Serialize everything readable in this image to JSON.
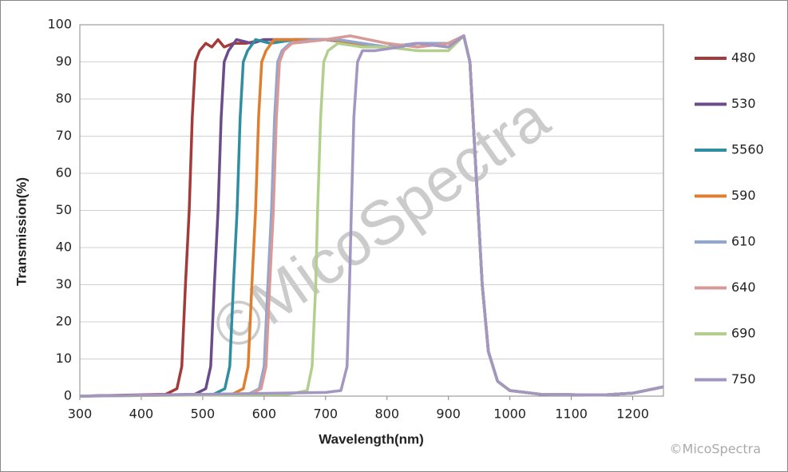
{
  "chart_data": {
    "type": "line",
    "xlabel": "Wavelength(nm)",
    "ylabel": "Transmission(%)",
    "watermark": "©MicoSpectra",
    "credit": "©MicoSpectra",
    "xlim": [
      300,
      1250
    ],
    "xticks": [
      300,
      400,
      500,
      600,
      700,
      800,
      900,
      1000,
      1100,
      1200
    ],
    "ylim": [
      0,
      100
    ],
    "yticks": [
      0,
      10,
      20,
      30,
      40,
      50,
      60,
      70,
      80,
      90,
      100
    ],
    "grid": true,
    "legend": "right",
    "series": [
      {
        "name": "480",
        "color": "#a33b3a",
        "x": [
          300,
          440,
          458,
          466,
          472,
          478,
          483,
          488,
          495,
          505,
          515,
          525,
          535,
          550,
          570,
          600,
          650,
          700,
          750,
          800,
          850,
          900,
          925,
          935,
          945,
          955,
          965,
          980,
          1000,
          1050,
          1150,
          1200,
          1250
        ],
        "values": [
          0,
          0.5,
          2,
          8,
          30,
          50,
          75,
          90,
          93,
          95,
          94,
          96,
          94,
          95,
          95,
          96,
          96,
          96,
          95,
          94,
          95,
          95,
          97,
          90,
          60,
          30,
          12,
          4,
          1.5,
          0.5,
          0.3,
          0.8,
          2.5
        ]
      },
      {
        "name": "530",
        "color": "#6b4c8a",
        "x": [
          300,
          487,
          505,
          513,
          519,
          525,
          530,
          535,
          542,
          555,
          580,
          600,
          650,
          700,
          750,
          800,
          850,
          900,
          925,
          935,
          945,
          955,
          965,
          980,
          1000,
          1050,
          1150,
          1200,
          1250
        ],
        "values": [
          0,
          0.5,
          2,
          8,
          30,
          50,
          75,
          90,
          93,
          96,
          95,
          96,
          96,
          96,
          95,
          94,
          95,
          95,
          97,
          90,
          60,
          30,
          12,
          4,
          1.5,
          0.5,
          0.3,
          0.8,
          2.5
        ]
      },
      {
        "name": "5560",
        "color": "#2f8fa0",
        "x": [
          300,
          518,
          536,
          544,
          550,
          556,
          561,
          566,
          573,
          586,
          610,
          650,
          700,
          750,
          800,
          850,
          900,
          925,
          935,
          945,
          955,
          965,
          980,
          1000,
          1050,
          1150,
          1200,
          1250
        ],
        "values": [
          0,
          0.5,
          2,
          8,
          30,
          50,
          75,
          90,
          93,
          96,
          95,
          96,
          96,
          95,
          94,
          95,
          94,
          97,
          90,
          60,
          30,
          12,
          4,
          1.5,
          0.5,
          0.3,
          0.8,
          2.5
        ]
      },
      {
        "name": "590",
        "color": "#e07e30",
        "x": [
          300,
          548,
          566,
          574,
          580,
          586,
          591,
          596,
          603,
          616,
          650,
          700,
          750,
          800,
          850,
          900,
          925,
          935,
          945,
          955,
          965,
          980,
          1000,
          1050,
          1150,
          1200,
          1250
        ],
        "values": [
          0,
          0.5,
          2,
          8,
          30,
          50,
          75,
          90,
          93,
          96,
          96,
          96,
          95,
          94,
          95,
          95,
          97,
          90,
          60,
          30,
          12,
          4,
          1.5,
          0.5,
          0.3,
          0.8,
          2.5
        ]
      },
      {
        "name": "610",
        "color": "#8ea6d0",
        "x": [
          300,
          574,
          592,
          600,
          606,
          612,
          617,
          622,
          629,
          642,
          680,
          720,
          800,
          850,
          900,
          925,
          935,
          945,
          955,
          965,
          980,
          1000,
          1050,
          1150,
          1200,
          1250
        ],
        "values": [
          0,
          0.5,
          2,
          8,
          30,
          50,
          75,
          90,
          93,
          95,
          96,
          96,
          94,
          95,
          95,
          97,
          90,
          60,
          30,
          12,
          4,
          1.5,
          0.5,
          0.3,
          0.8,
          2.5
        ]
      },
      {
        "name": "640",
        "color": "#d89a98",
        "x": [
          300,
          577,
          595,
          603,
          609,
          615,
          620,
          625,
          632,
          645,
          700,
          740,
          800,
          850,
          900,
          925,
          935,
          945,
          955,
          965,
          980,
          1000,
          1050,
          1150,
          1200,
          1250
        ],
        "values": [
          0,
          0.5,
          2,
          8,
          30,
          50,
          75,
          90,
          93,
          95,
          96,
          97,
          95,
          94,
          95,
          97,
          90,
          60,
          30,
          12,
          4,
          1.5,
          0.5,
          0.3,
          0.8,
          2.5
        ]
      },
      {
        "name": "690",
        "color": "#b2cf8e",
        "x": [
          300,
          640,
          670,
          678,
          684,
          687,
          692,
          697,
          704,
          720,
          760,
          800,
          850,
          900,
          925,
          935,
          945,
          955,
          965,
          980,
          1000,
          1050,
          1150,
          1200,
          1250
        ],
        "values": [
          0,
          0.5,
          1.5,
          8,
          30,
          50,
          75,
          90,
          93,
          95,
          94,
          94,
          93,
          93,
          97,
          90,
          60,
          30,
          12,
          4,
          1.5,
          0.5,
          0.3,
          0.8,
          2.5
        ]
      },
      {
        "name": "750",
        "color": "#a396c0",
        "x": [
          300,
          700,
          725,
          735,
          739,
          742,
          746,
          752,
          760,
          780,
          820,
          850,
          900,
          925,
          935,
          945,
          955,
          965,
          980,
          1000,
          1050,
          1150,
          1200,
          1250
        ],
        "values": [
          0,
          1,
          1.5,
          8,
          30,
          50,
          75,
          90,
          93,
          93,
          94,
          95,
          94,
          97,
          90,
          60,
          30,
          12,
          4,
          1.5,
          0.5,
          0.3,
          0.8,
          2.5
        ]
      }
    ]
  }
}
